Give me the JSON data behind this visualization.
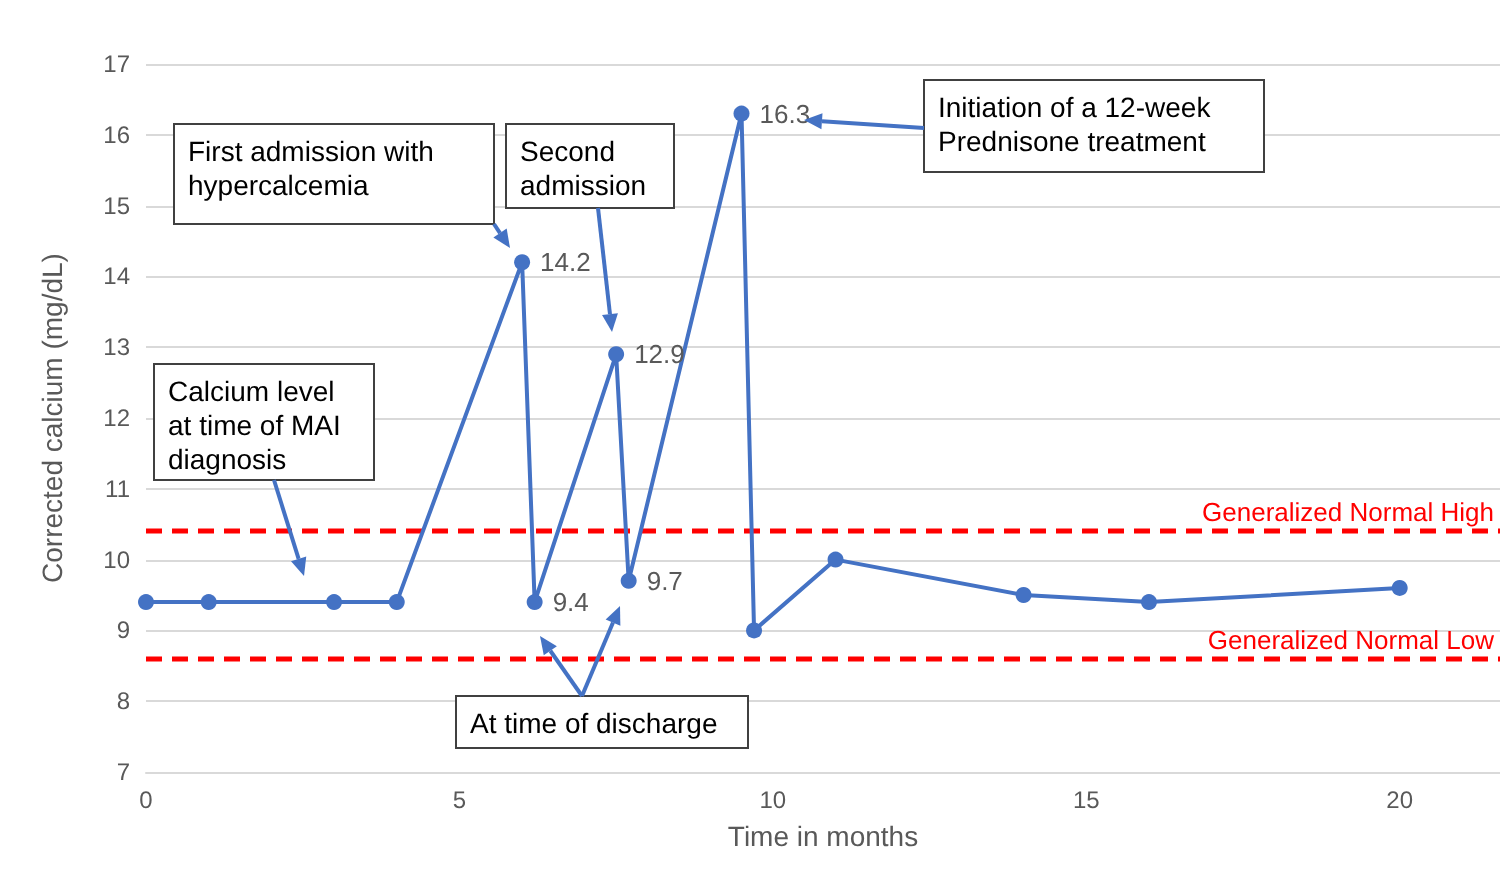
{
  "chart_data": {
    "type": "line",
    "xlabel": "Time in months",
    "ylabel": "Corrected calcium (mg/dL)",
    "x": [
      0,
      1,
      3,
      4,
      6,
      6.2,
      7.5,
      7.7,
      9.5,
      9.7,
      11,
      14,
      16,
      20
    ],
    "series": [
      {
        "color": "#4472c4",
        "values": [
          9.4,
          9.4,
          9.4,
          9.4,
          14.2,
          9.4,
          12.9,
          9.7,
          16.3,
          9.0,
          10.0,
          9.5,
          9.4,
          9.6
        ],
        "value_labels": [
          null,
          null,
          null,
          null,
          "14.2",
          "9.4",
          "12.9",
          "9.7",
          "16.3",
          null,
          null,
          null,
          null,
          null
        ]
      }
    ],
    "xlim": [
      0,
      21.6
    ],
    "xticks": [
      0,
      5,
      10,
      15,
      20
    ],
    "ylim": [
      7,
      17
    ],
    "yticks": [
      7,
      8,
      9,
      10,
      11,
      12,
      13,
      14,
      15,
      16,
      17
    ],
    "grid": "y",
    "marker": "circle",
    "line_style": "solid",
    "ref_lines": [
      {
        "axis": "y",
        "value": 10.4,
        "label": "Generalized Normal High",
        "color": "#ff0000",
        "line_style": "dashed"
      },
      {
        "axis": "y",
        "value": 8.6,
        "label": "Generalized Normal Low",
        "color": "#ff0000",
        "line_style": "dashed"
      }
    ],
    "annotations": [
      "Calcium level at time of MAI diagnosis",
      "First admission with hypercalcemia",
      "Second admission",
      "Initiation of a 12-week Prednisone treatment",
      "At time of discharge"
    ]
  }
}
